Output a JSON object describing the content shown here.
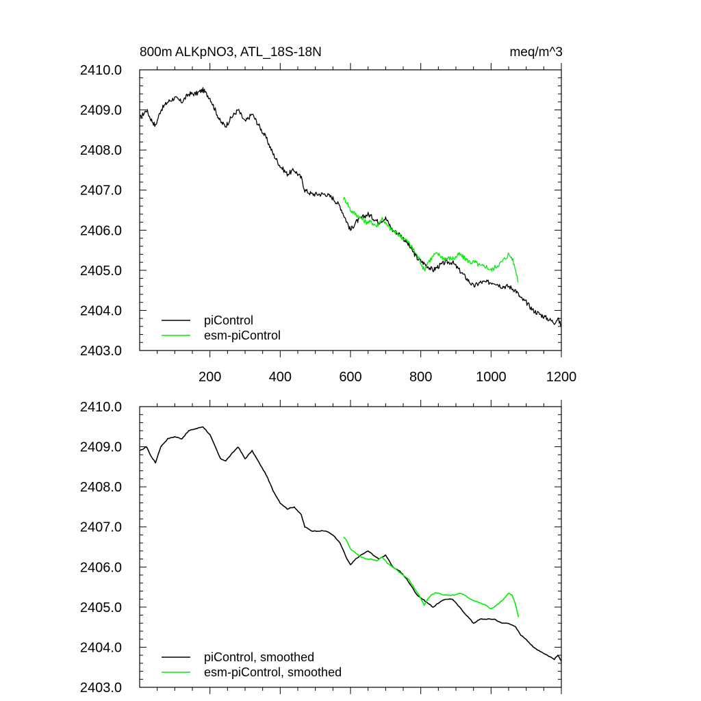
{
  "chart_data": [
    {
      "type": "line",
      "title": "800m ALKpNO3, ATL_18S-18N",
      "units": "meq/m^3",
      "xlim": [
        0,
        1200
      ],
      "ylim": [
        2403.0,
        2410.0
      ],
      "xticks": [
        "200",
        "400",
        "600",
        "800",
        "1000",
        "1200"
      ],
      "yticks": [
        "2403.0",
        "2404.0",
        "2405.0",
        "2406.0",
        "2407.0",
        "2408.0",
        "2409.0",
        "2410.0"
      ],
      "legend_position": "bottom-left",
      "series": [
        {
          "name": "piControl",
          "color": "#000000",
          "x": [
            1,
            20,
            30,
            45,
            60,
            80,
            100,
            120,
            140,
            160,
            180,
            200,
            215,
            230,
            245,
            260,
            280,
            300,
            320,
            340,
            360,
            380,
            400,
            420,
            440,
            460,
            470,
            490,
            510,
            530,
            550,
            570,
            590,
            600,
            615,
            630,
            650,
            665,
            680,
            700,
            720,
            740,
            760,
            775,
            790,
            805,
            820,
            835,
            850,
            870,
            890,
            910,
            930,
            950,
            970,
            990,
            1010,
            1030,
            1050,
            1070,
            1085,
            1100,
            1120,
            1140,
            1160,
            1180,
            1190,
            1200
          ],
          "y": [
            2408.8,
            2409.0,
            2408.8,
            2408.6,
            2409.0,
            2409.2,
            2409.3,
            2409.2,
            2409.4,
            2409.4,
            2409.5,
            2409.3,
            2409.0,
            2408.7,
            2408.6,
            2408.8,
            2409.0,
            2408.7,
            2408.9,
            2408.6,
            2408.3,
            2407.9,
            2407.6,
            2407.4,
            2407.5,
            2407.3,
            2407.0,
            2406.9,
            2406.9,
            2406.9,
            2406.8,
            2406.6,
            2406.2,
            2406.0,
            2406.2,
            2406.3,
            2406.4,
            2406.3,
            2406.2,
            2406.3,
            2406.0,
            2405.9,
            2405.7,
            2405.5,
            2405.3,
            2405.2,
            2405.1,
            2405.0,
            2405.1,
            2405.2,
            2405.2,
            2405.0,
            2404.8,
            2404.6,
            2404.7,
            2404.7,
            2404.7,
            2404.6,
            2404.6,
            2404.5,
            2404.3,
            2404.2,
            2404.0,
            2403.9,
            2403.8,
            2403.7,
            2403.8,
            2403.6
          ]
        },
        {
          "name": "esm-piControl",
          "color": "#00ee00",
          "x": [
            580,
            590,
            600,
            615,
            630,
            645,
            660,
            675,
            690,
            705,
            720,
            735,
            750,
            765,
            780,
            795,
            810,
            820,
            830,
            840,
            850,
            865,
            880,
            895,
            910,
            925,
            940,
            955,
            970,
            985,
            1000,
            1015,
            1030,
            1040,
            1050,
            1060,
            1070,
            1078
          ],
          "y": [
            2406.8,
            2406.7,
            2406.5,
            2406.4,
            2406.3,
            2406.2,
            2406.2,
            2406.1,
            2406.3,
            2406.1,
            2406.0,
            2405.9,
            2405.8,
            2405.7,
            2405.5,
            2405.3,
            2405.0,
            2405.2,
            2405.3,
            2405.4,
            2405.4,
            2405.3,
            2405.3,
            2405.3,
            2405.4,
            2405.3,
            2405.2,
            2405.2,
            2405.1,
            2405.1,
            2405.0,
            2405.1,
            2405.2,
            2405.3,
            2405.4,
            2405.3,
            2405.0,
            2404.7
          ]
        }
      ]
    },
    {
      "type": "line",
      "xlim": [
        0,
        1200
      ],
      "ylim": [
        2403.0,
        2410.0
      ],
      "yticks": [
        "2403.0",
        "2404.0",
        "2405.0",
        "2406.0",
        "2407.0",
        "2408.0",
        "2409.0",
        "2410.0"
      ],
      "legend_position": "bottom-left",
      "series": [
        {
          "name": "piControl, smoothed",
          "color": "#000000",
          "x": [
            1,
            20,
            30,
            45,
            60,
            80,
            100,
            120,
            140,
            160,
            180,
            200,
            215,
            230,
            245,
            260,
            280,
            300,
            320,
            340,
            360,
            380,
            400,
            420,
            440,
            460,
            470,
            490,
            510,
            530,
            550,
            570,
            590,
            600,
            615,
            630,
            650,
            665,
            680,
            700,
            720,
            740,
            760,
            775,
            790,
            805,
            820,
            835,
            850,
            870,
            890,
            910,
            930,
            950,
            970,
            990,
            1010,
            1030,
            1050,
            1070,
            1085,
            1100,
            1120,
            1140,
            1160,
            1180,
            1190,
            1200
          ],
          "y": [
            2408.9,
            2409.0,
            2408.8,
            2408.6,
            2409.0,
            2409.2,
            2409.25,
            2409.2,
            2409.4,
            2409.45,
            2409.5,
            2409.3,
            2409.0,
            2408.7,
            2408.65,
            2408.8,
            2409.0,
            2408.7,
            2408.9,
            2408.6,
            2408.3,
            2407.9,
            2407.6,
            2407.45,
            2407.5,
            2407.3,
            2407.0,
            2406.9,
            2406.9,
            2406.9,
            2406.8,
            2406.6,
            2406.2,
            2406.05,
            2406.2,
            2406.3,
            2406.4,
            2406.3,
            2406.2,
            2406.3,
            2406.0,
            2405.9,
            2405.7,
            2405.5,
            2405.3,
            2405.2,
            2405.1,
            2405.0,
            2405.1,
            2405.2,
            2405.2,
            2405.0,
            2404.8,
            2404.6,
            2404.7,
            2404.7,
            2404.7,
            2404.6,
            2404.6,
            2404.5,
            2404.3,
            2404.2,
            2404.0,
            2403.9,
            2403.8,
            2403.7,
            2403.8,
            2403.65
          ]
        },
        {
          "name": "esm-piControl, smoothed",
          "color": "#00ee00",
          "x": [
            580,
            590,
            600,
            615,
            630,
            645,
            660,
            675,
            690,
            705,
            720,
            735,
            750,
            765,
            780,
            795,
            810,
            820,
            830,
            840,
            850,
            865,
            880,
            895,
            910,
            925,
            940,
            955,
            970,
            985,
            1000,
            1015,
            1030,
            1040,
            1050,
            1060,
            1070,
            1078
          ],
          "y": [
            2406.75,
            2406.65,
            2406.45,
            2406.35,
            2406.25,
            2406.2,
            2406.2,
            2406.15,
            2406.25,
            2406.1,
            2406.0,
            2405.9,
            2405.8,
            2405.7,
            2405.5,
            2405.3,
            2405.05,
            2405.2,
            2405.3,
            2405.35,
            2405.35,
            2405.3,
            2405.3,
            2405.3,
            2405.35,
            2405.3,
            2405.2,
            2405.15,
            2405.1,
            2405.05,
            2404.95,
            2405.05,
            2405.15,
            2405.25,
            2405.35,
            2405.3,
            2405.05,
            2404.75
          ]
        }
      ]
    }
  ]
}
